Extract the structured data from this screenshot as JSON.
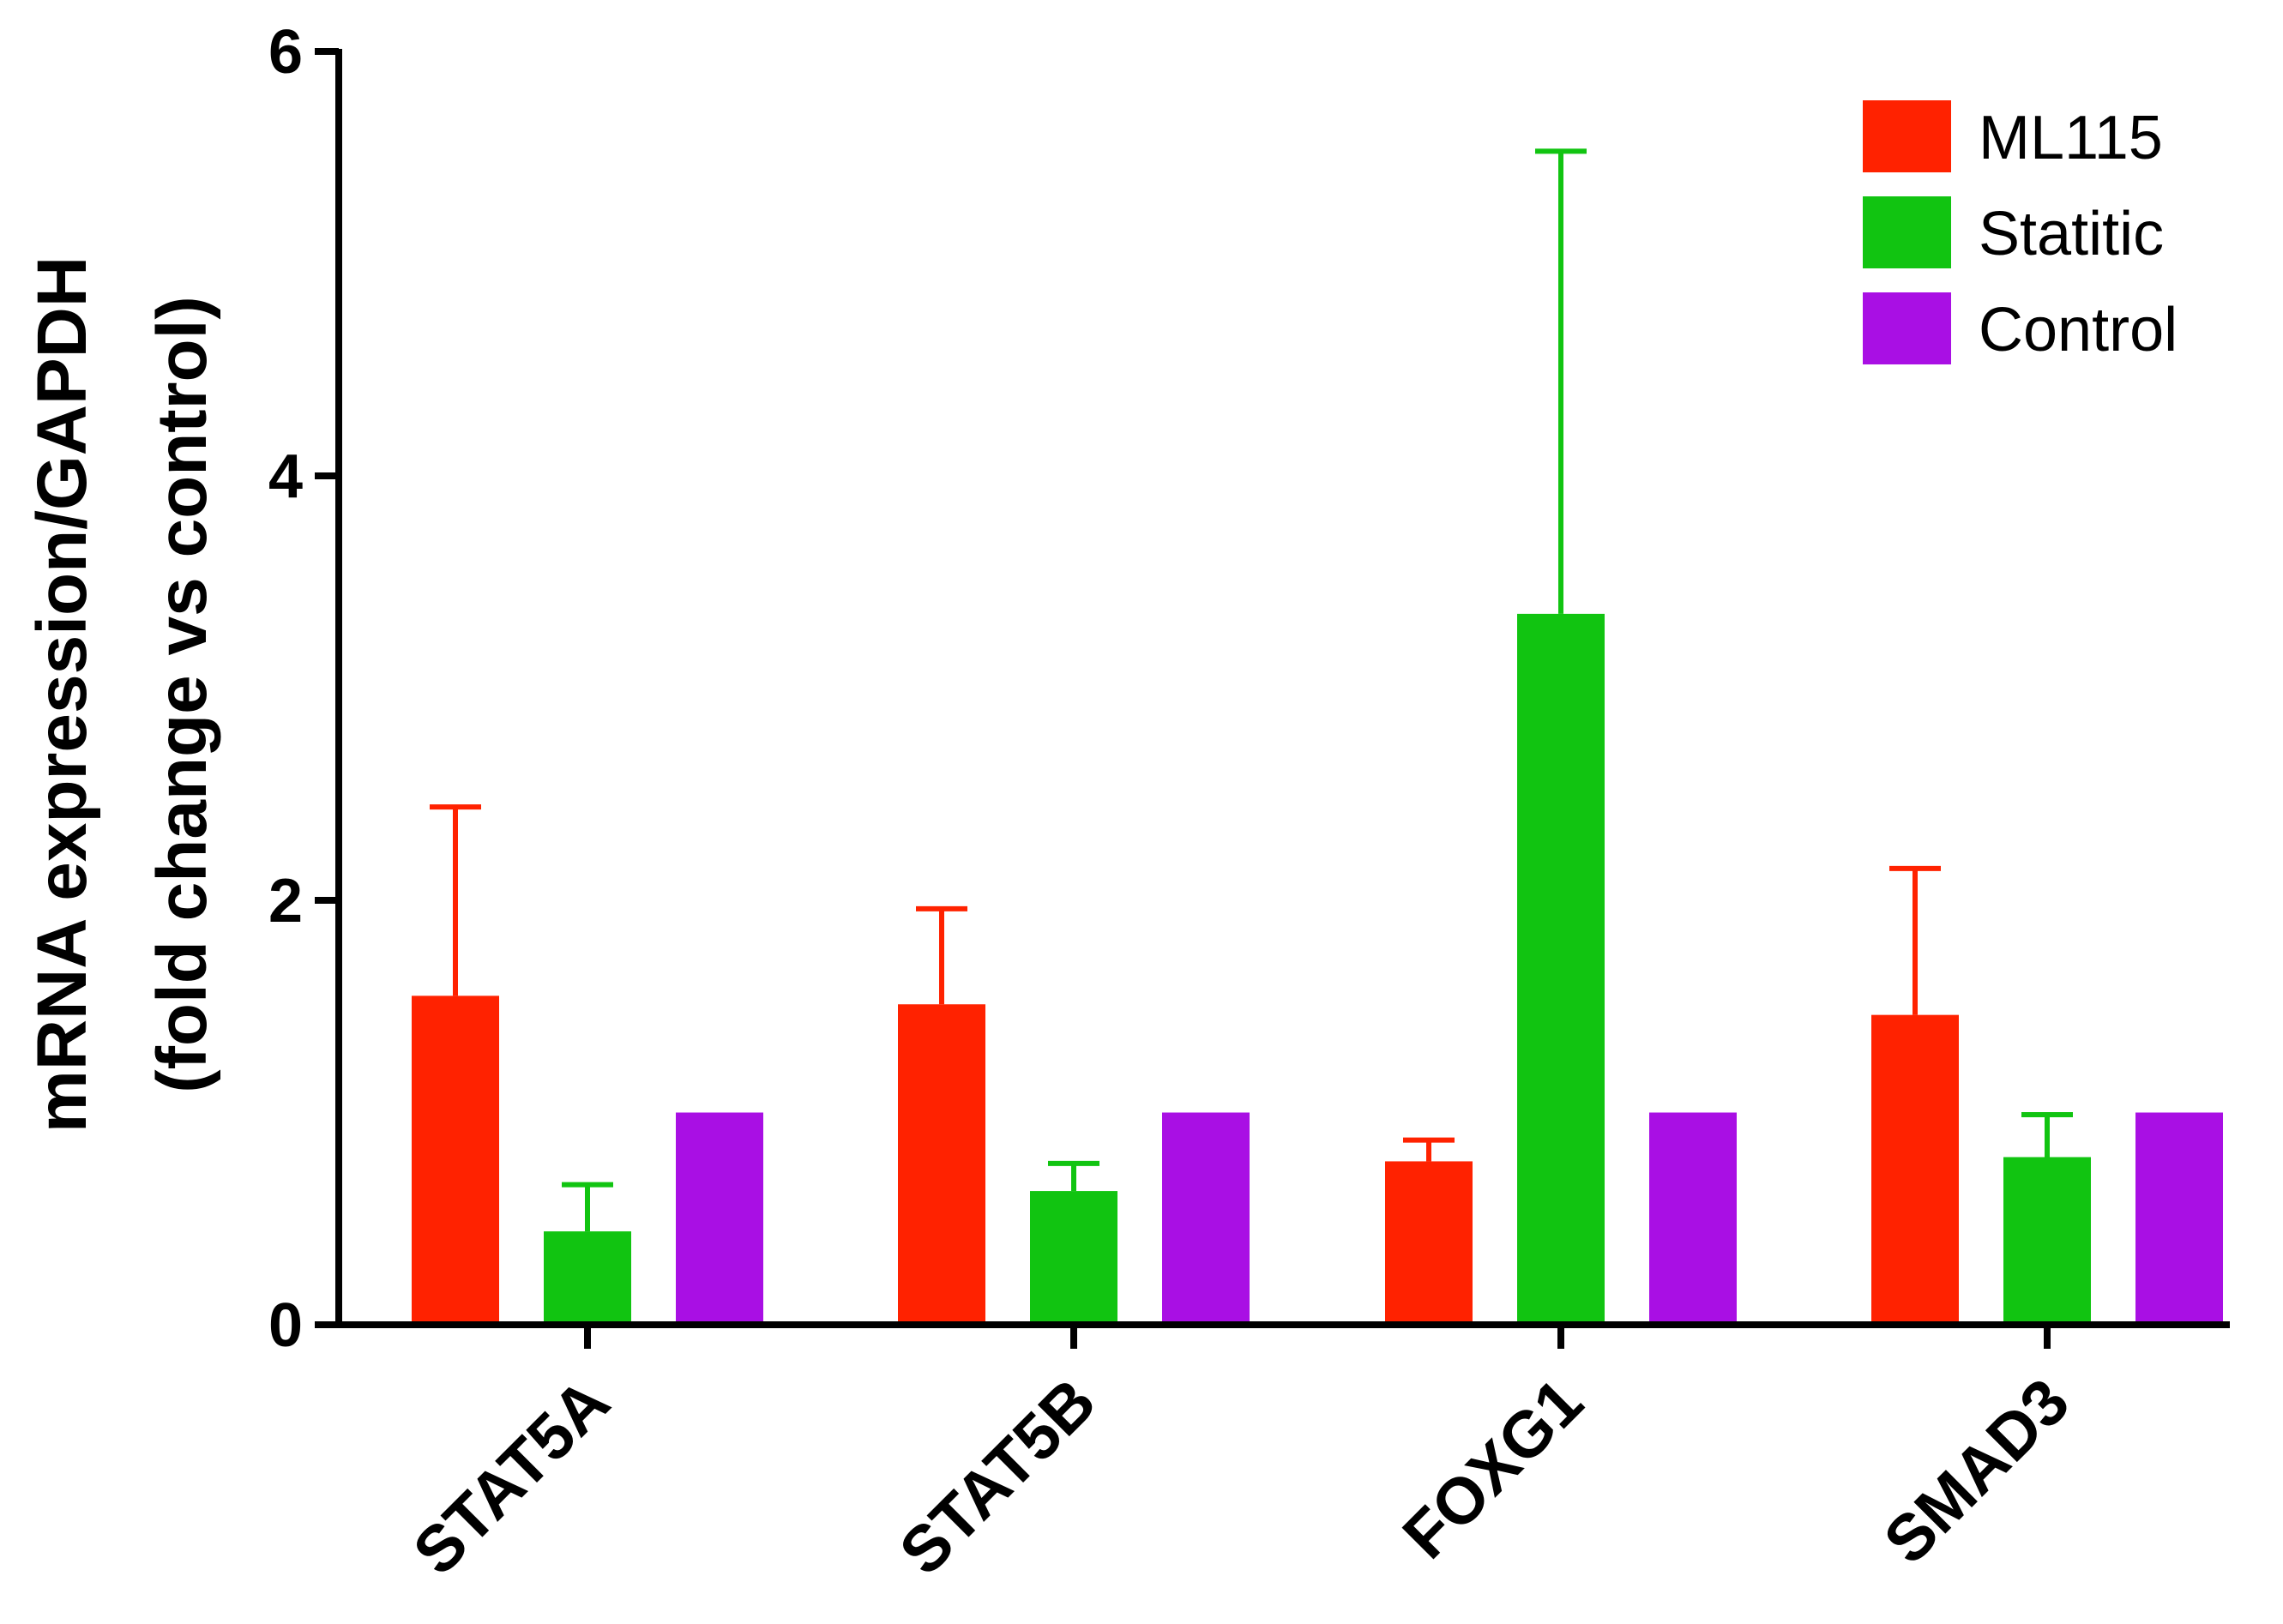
{
  "chart_data": {
    "type": "bar",
    "title": "",
    "xlabel": "",
    "ylabel_line1": "mRNA expression/GAPDH",
    "ylabel_line2": "(fold change vs control)",
    "ylim": [
      0,
      6
    ],
    "yticks": [
      "0",
      "2",
      "4",
      "6"
    ],
    "categories": [
      "STAT5A",
      "STAT5B",
      "FOXG1",
      "SMAD3"
    ],
    "series": [
      {
        "name": "ML115",
        "color": "#ff2200",
        "values": [
          1.55,
          1.51,
          0.77,
          1.46
        ],
        "errors": [
          0.89,
          0.45,
          0.1,
          0.69
        ]
      },
      {
        "name": "Statitic",
        "color": "#11c411",
        "values": [
          0.44,
          0.63,
          3.35,
          0.79
        ],
        "errors": [
          0.22,
          0.13,
          2.18,
          0.2
        ]
      },
      {
        "name": "Control",
        "color": "#a90fe4",
        "values": [
          1.0,
          1.0,
          1.0,
          1.0
        ],
        "errors": [
          0,
          0,
          0,
          0
        ]
      }
    ],
    "legend_position": "top-right",
    "grid": false
  }
}
